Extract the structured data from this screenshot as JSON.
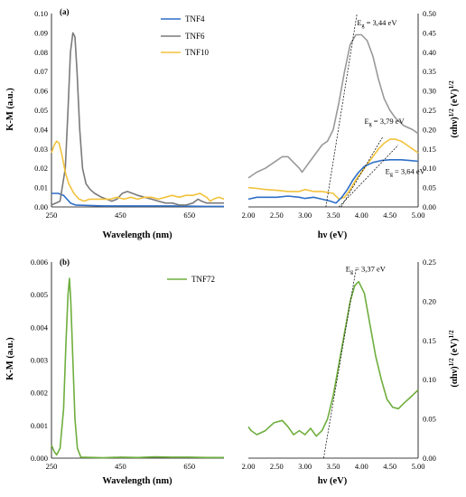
{
  "chart_data": [
    {
      "id": "a-left",
      "panel_label": "(a)",
      "type": "line",
      "xlabel": "Wavelength (nm)",
      "ylabel": "K-M (a.u.)",
      "xlim": [
        250,
        750
      ],
      "ylim": [
        0,
        0.1
      ],
      "xticks": [
        "250",
        "450",
        "650"
      ],
      "xtick_values": [
        250,
        450,
        650
      ],
      "yticks": [
        "0.00",
        "0.01",
        "0.02",
        "0.03",
        "0.04",
        "0.05",
        "0.06",
        "0.07",
        "0.08",
        "0.09",
        "0.10"
      ],
      "ytick_values": [
        0,
        0.01,
        0.02,
        0.03,
        0.04,
        0.05,
        0.06,
        0.07,
        0.08,
        0.09,
        0.1
      ],
      "legend_position": "top-right",
      "series": [
        {
          "name": "TNF4",
          "color": "#2e6fc7",
          "points": [
            [
              250,
              0.007
            ],
            [
              270,
              0.007
            ],
            [
              285,
              0.006
            ],
            [
              295,
              0.004
            ],
            [
              305,
              0.002
            ],
            [
              320,
              0.001
            ],
            [
              350,
              0.0008
            ],
            [
              400,
              0.0005
            ],
            [
              500,
              0.0005
            ],
            [
              600,
              0.0005
            ],
            [
              700,
              0.0003
            ],
            [
              750,
              0.0003
            ]
          ]
        },
        {
          "name": "TNF6",
          "color": "#7a7a7a",
          "points": [
            [
              250,
              0.001
            ],
            [
              275,
              0.003
            ],
            [
              290,
              0.02
            ],
            [
              298,
              0.05
            ],
            [
              305,
              0.08
            ],
            [
              312,
              0.09
            ],
            [
              318,
              0.088
            ],
            [
              324,
              0.07
            ],
            [
              332,
              0.04
            ],
            [
              340,
              0.02
            ],
            [
              350,
              0.012
            ],
            [
              362,
              0.009
            ],
            [
              375,
              0.007
            ],
            [
              395,
              0.005
            ],
            [
              410,
              0.004
            ],
            [
              425,
              0.003
            ],
            [
              440,
              0.004
            ],
            [
              455,
              0.007
            ],
            [
              470,
              0.008
            ],
            [
              485,
              0.007
            ],
            [
              500,
              0.006
            ],
            [
              520,
              0.005
            ],
            [
              540,
              0.004
            ],
            [
              560,
              0.003
            ],
            [
              580,
              0.002
            ],
            [
              600,
              0.002
            ],
            [
              620,
              0.001
            ],
            [
              640,
              0.001
            ],
            [
              660,
              0.002
            ],
            [
              675,
              0.004
            ],
            [
              685,
              0.003
            ],
            [
              700,
              0.002
            ],
            [
              720,
              0.002
            ],
            [
              750,
              0.002
            ]
          ]
        },
        {
          "name": "TNF10",
          "color": "#f2c23b",
          "points": [
            [
              250,
              0.028
            ],
            [
              258,
              0.032
            ],
            [
              265,
              0.034
            ],
            [
              272,
              0.033
            ],
            [
              280,
              0.027
            ],
            [
              290,
              0.018
            ],
            [
              300,
              0.012
            ],
            [
              315,
              0.007
            ],
            [
              330,
              0.004
            ],
            [
              345,
              0.003
            ],
            [
              360,
              0.004
            ],
            [
              380,
              0.004
            ],
            [
              400,
              0.004
            ],
            [
              420,
              0.004
            ],
            [
              440,
              0.005
            ],
            [
              460,
              0.004
            ],
            [
              480,
              0.005
            ],
            [
              500,
              0.004
            ],
            [
              520,
              0.005
            ],
            [
              540,
              0.005
            ],
            [
              560,
              0.004
            ],
            [
              580,
              0.005
            ],
            [
              600,
              0.006
            ],
            [
              620,
              0.005
            ],
            [
              640,
              0.006
            ],
            [
              660,
              0.006
            ],
            [
              680,
              0.007
            ],
            [
              700,
              0.005
            ],
            [
              710,
              0.003
            ],
            [
              720,
              0.004
            ],
            [
              735,
              0.005
            ],
            [
              750,
              0.004
            ]
          ]
        }
      ]
    },
    {
      "id": "a-right",
      "type": "line",
      "xlabel": "hν (eV)",
      "ylabel": "(αhν)1/2 (eV)1/2",
      "xlim": [
        2.0,
        5.0
      ],
      "ylim": [
        0,
        0.5
      ],
      "xticks": [
        "2.00",
        "2.50",
        "3.00",
        "3.50",
        "4.00",
        "4.50",
        "5.00"
      ],
      "xtick_values": [
        2.0,
        2.5,
        3.0,
        3.5,
        4.0,
        4.5,
        5.0
      ],
      "yticks": [
        "0.00",
        "0.05",
        "0.10",
        "0.15",
        "0.20",
        "0.25",
        "0.30",
        "0.35",
        "0.40",
        "0.45",
        "0.50"
      ],
      "ytick_values": [
        0,
        0.05,
        0.1,
        0.15,
        0.2,
        0.25,
        0.3,
        0.35,
        0.4,
        0.45,
        0.5
      ],
      "series": [
        {
          "name": "TNF6",
          "color": "#999999",
          "points": [
            [
              2.0,
              0.075
            ],
            [
              2.15,
              0.09
            ],
            [
              2.3,
              0.1
            ],
            [
              2.45,
              0.115
            ],
            [
              2.6,
              0.13
            ],
            [
              2.7,
              0.13
            ],
            [
              2.8,
              0.115
            ],
            [
              2.9,
              0.1
            ],
            [
              2.95,
              0.09
            ],
            [
              3.0,
              0.1
            ],
            [
              3.1,
              0.12
            ],
            [
              3.2,
              0.14
            ],
            [
              3.3,
              0.16
            ],
            [
              3.4,
              0.17
            ],
            [
              3.5,
              0.2
            ],
            [
              3.6,
              0.27
            ],
            [
              3.7,
              0.35
            ],
            [
              3.8,
              0.42
            ],
            [
              3.9,
              0.445
            ],
            [
              4.0,
              0.445
            ],
            [
              4.1,
              0.43
            ],
            [
              4.2,
              0.39
            ],
            [
              4.3,
              0.33
            ],
            [
              4.4,
              0.28
            ],
            [
              4.5,
              0.25
            ],
            [
              4.6,
              0.23
            ],
            [
              4.75,
              0.21
            ],
            [
              4.9,
              0.2
            ],
            [
              5.0,
              0.19
            ]
          ]
        },
        {
          "name": "TNF10",
          "color": "#f2c23b",
          "points": [
            [
              2.0,
              0.05
            ],
            [
              2.15,
              0.048
            ],
            [
              2.3,
              0.045
            ],
            [
              2.5,
              0.043
            ],
            [
              2.7,
              0.04
            ],
            [
              2.9,
              0.04
            ],
            [
              3.0,
              0.045
            ],
            [
              3.15,
              0.04
            ],
            [
              3.3,
              0.04
            ],
            [
              3.5,
              0.035
            ],
            [
              3.6,
              0.02
            ],
            [
              3.7,
              0.025
            ],
            [
              3.8,
              0.045
            ],
            [
              3.9,
              0.07
            ],
            [
              4.0,
              0.09
            ],
            [
              4.1,
              0.11
            ],
            [
              4.2,
              0.13
            ],
            [
              4.3,
              0.15
            ],
            [
              4.4,
              0.165
            ],
            [
              4.5,
              0.175
            ],
            [
              4.6,
              0.175
            ],
            [
              4.7,
              0.17
            ],
            [
              4.8,
              0.16
            ],
            [
              4.9,
              0.15
            ],
            [
              5.0,
              0.14
            ]
          ]
        },
        {
          "name": "TNF4",
          "color": "#2e6fc7",
          "points": [
            [
              2.0,
              0.02
            ],
            [
              2.15,
              0.025
            ],
            [
              2.3,
              0.025
            ],
            [
              2.5,
              0.025
            ],
            [
              2.7,
              0.028
            ],
            [
              2.9,
              0.025
            ],
            [
              3.0,
              0.022
            ],
            [
              3.15,
              0.025
            ],
            [
              3.3,
              0.02
            ],
            [
              3.45,
              0.015
            ],
            [
              3.55,
              0.01
            ],
            [
              3.65,
              0.025
            ],
            [
              3.75,
              0.045
            ],
            [
              3.85,
              0.07
            ],
            [
              3.95,
              0.09
            ],
            [
              4.05,
              0.105
            ],
            [
              4.2,
              0.115
            ],
            [
              4.35,
              0.12
            ],
            [
              4.5,
              0.122
            ],
            [
              4.7,
              0.122
            ],
            [
              4.85,
              0.12
            ],
            [
              5.0,
              0.118
            ]
          ]
        }
      ],
      "fits": [
        {
          "from": [
            3.37,
            0.0
          ],
          "to": [
            3.92,
            0.5
          ]
        },
        {
          "from": [
            3.64,
            0.0
          ],
          "to": [
            4.37,
            0.18
          ]
        },
        {
          "from": [
            3.6,
            0.0
          ],
          "to": [
            4.65,
            0.16
          ]
        }
      ],
      "annotations": [
        {
          "sub": "g",
          "text": " = 3,44 eV",
          "at": [
            3.92,
            0.47
          ]
        },
        {
          "sub": "g",
          "text": " = 3,79 eV",
          "at": [
            4.05,
            0.215
          ]
        },
        {
          "sub": "g",
          "text": " = 3,64 eV",
          "at": [
            4.42,
            0.085
          ]
        }
      ]
    },
    {
      "id": "b-left",
      "panel_label": "(b)",
      "type": "line",
      "xlabel": "Wavelength (nm)",
      "ylabel": "K-M (a.u.)",
      "xlim": [
        250,
        750
      ],
      "ylim": [
        0,
        0.006
      ],
      "xticks": [
        "250",
        "450",
        "650"
      ],
      "xtick_values": [
        250,
        450,
        650
      ],
      "yticks": [
        "0.000",
        "0.001",
        "0.002",
        "0.003",
        "0.004",
        "0.005",
        "0.006"
      ],
      "ytick_values": [
        0,
        0.001,
        0.002,
        0.003,
        0.004,
        0.005,
        0.006
      ],
      "legend_position": "top-right",
      "series": [
        {
          "name": "TNF72",
          "color": "#6fae3d",
          "points": [
            [
              250,
              0.0004
            ],
            [
              258,
              0.0002
            ],
            [
              265,
              0.0001
            ],
            [
              275,
              0.0003
            ],
            [
              285,
              0.0015
            ],
            [
              292,
              0.0035
            ],
            [
              298,
              0.005
            ],
            [
              302,
              0.0055
            ],
            [
              306,
              0.0048
            ],
            [
              312,
              0.003
            ],
            [
              318,
              0.0012
            ],
            [
              325,
              0.0003
            ],
            [
              335,
              3e-05
            ],
            [
              400,
              1e-05
            ],
            [
              450,
              3e-05
            ],
            [
              500,
              2e-05
            ],
            [
              550,
              4e-05
            ],
            [
              600,
              3e-05
            ],
            [
              650,
              3e-05
            ],
            [
              700,
              2e-05
            ],
            [
              750,
              2e-05
            ]
          ]
        }
      ]
    },
    {
      "id": "b-right",
      "type": "line",
      "xlabel": "hν (eV)",
      "ylabel": "(αhν)1/2 (eV)1/2",
      "xlim": [
        2.0,
        5.0
      ],
      "ylim": [
        0,
        0.25
      ],
      "xticks": [
        "2.00",
        "2.50",
        "3.00",
        "3.50",
        "4.00",
        "4.50",
        "5.00"
      ],
      "xtick_values": [
        2.0,
        2.5,
        3.0,
        3.5,
        4.0,
        4.5,
        5.0
      ],
      "yticks": [
        "0.00",
        "0.05",
        "0.10",
        "0.15",
        "0.20",
        "0.25"
      ],
      "ytick_values": [
        0,
        0.05,
        0.1,
        0.15,
        0.2,
        0.25
      ],
      "series": [
        {
          "name": "TNF72",
          "color": "#6fae3d",
          "points": [
            [
              2.0,
              0.04
            ],
            [
              2.05,
              0.035
            ],
            [
              2.15,
              0.03
            ],
            [
              2.3,
              0.035
            ],
            [
              2.45,
              0.045
            ],
            [
              2.6,
              0.048
            ],
            [
              2.7,
              0.04
            ],
            [
              2.8,
              0.03
            ],
            [
              2.9,
              0.035
            ],
            [
              3.0,
              0.03
            ],
            [
              3.1,
              0.038
            ],
            [
              3.2,
              0.028
            ],
            [
              3.3,
              0.035
            ],
            [
              3.4,
              0.05
            ],
            [
              3.5,
              0.08
            ],
            [
              3.6,
              0.12
            ],
            [
              3.7,
              0.16
            ],
            [
              3.8,
              0.2
            ],
            [
              3.88,
              0.22
            ],
            [
              3.95,
              0.225
            ],
            [
              4.05,
              0.21
            ],
            [
              4.15,
              0.17
            ],
            [
              4.25,
              0.13
            ],
            [
              4.35,
              0.1
            ],
            [
              4.45,
              0.075
            ],
            [
              4.55,
              0.065
            ],
            [
              4.65,
              0.063
            ],
            [
              4.75,
              0.07
            ],
            [
              4.9,
              0.08
            ],
            [
              5.0,
              0.087
            ]
          ]
        }
      ],
      "fits": [
        {
          "from": [
            3.33,
            0.0
          ],
          "to": [
            3.9,
            0.24
          ]
        }
      ],
      "annotations": [
        {
          "sub": "g",
          "text": " = 3,37 eV",
          "at": [
            3.72,
            0.238
          ]
        }
      ]
    }
  ]
}
